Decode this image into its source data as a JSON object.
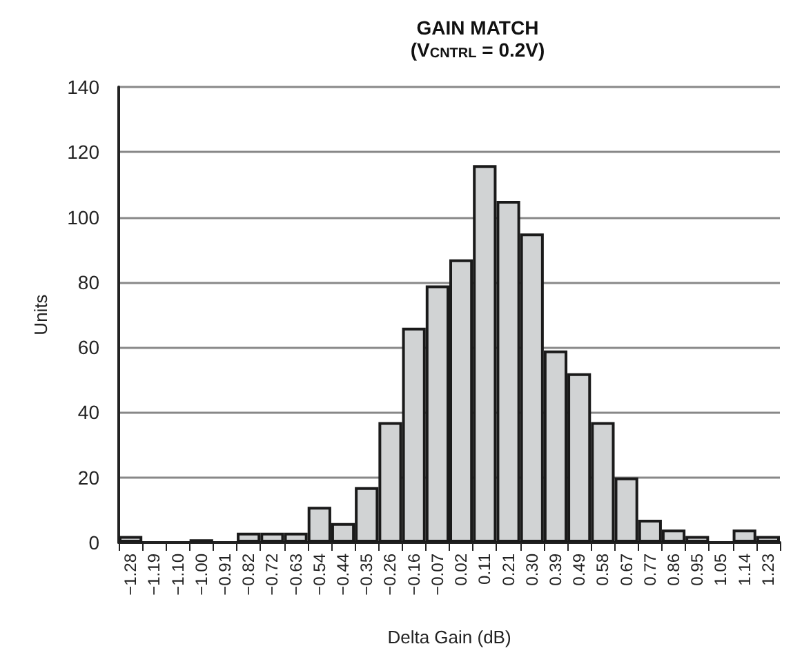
{
  "chart_data": {
    "type": "bar",
    "title": "GAIN MATCH",
    "subtitle": "(V$_{CNTRL}$ = 0.2V)",
    "xlabel": "Delta Gain (dB)",
    "ylabel": "Units",
    "categories": [
      "−1.28",
      "−1.19",
      "−1.10",
      "−1.00",
      "−0.91",
      "−0.82",
      "−0.72",
      "−0.63",
      "−0.54",
      "−0.44",
      "−0.35",
      "−0.26",
      "−0.16",
      "−0.07",
      "0.02",
      "0.11",
      "0.21",
      "0.30",
      "0.39",
      "0.49",
      "0.58",
      "0.67",
      "0.77",
      "0.86",
      "0.95",
      "1.05",
      "1.14",
      "1.23"
    ],
    "values": [
      2,
      0,
      0,
      1,
      0,
      3,
      3,
      3,
      11,
      6,
      17,
      37,
      66,
      79,
      87,
      116,
      105,
      95,
      59,
      52,
      37,
      20,
      7,
      4,
      2,
      0,
      4,
      2
    ],
    "color": "#d1d3d4",
    "ylim": [
      0,
      140
    ],
    "yticks": [
      0,
      20,
      40,
      60,
      80,
      100,
      120,
      140
    ],
    "grid": "y"
  }
}
